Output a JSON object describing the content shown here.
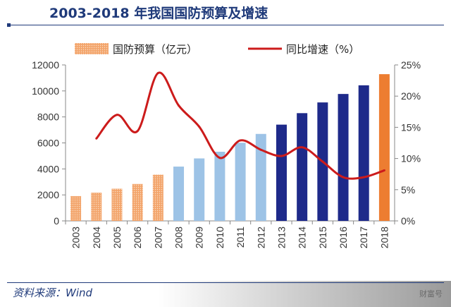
{
  "header": {
    "title": "2003-2018 年我国国防预算及增速"
  },
  "footer": {
    "source": "资料来源：Wind",
    "watermark": "财富号"
  },
  "colors": {
    "bar_early": "#f5b98a",
    "bar_mid": "#9dc3e6",
    "bar_late": "#1e2a8a",
    "bar_latest": "#ed7d31",
    "line": "#cc1b1b",
    "axis": "#888888",
    "text": "#333333"
  },
  "chart_data": {
    "type": "bar+line",
    "categories": [
      "2003",
      "2004",
      "2005",
      "2006",
      "2007",
      "2008",
      "2009",
      "2010",
      "2011",
      "2012",
      "2013",
      "2014",
      "2015",
      "2016",
      "2017",
      "2018"
    ],
    "series": [
      {
        "name": "国防预算（亿元）",
        "type": "bar",
        "axis": "left",
        "values": [
          1908,
          2172,
          2475,
          2838,
          3555,
          4178,
          4807,
          5321,
          6011,
          6692,
          7406,
          8290,
          9115,
          9766,
          10432,
          11289
        ]
      },
      {
        "name": "同比增速（%）",
        "type": "line",
        "axis": "right",
        "values": [
          null,
          13.2,
          17.0,
          14.4,
          23.7,
          18.5,
          15.1,
          10.1,
          12.9,
          11.4,
          10.4,
          11.8,
          9.5,
          7.0,
          7.0,
          8.1
        ]
      }
    ],
    "bar_color_groups": [
      "early",
      "early",
      "early",
      "early",
      "early",
      "mid",
      "mid",
      "mid",
      "mid",
      "mid",
      "late",
      "late",
      "late",
      "late",
      "late",
      "latest"
    ],
    "left_axis": {
      "ylim": [
        0,
        12000
      ],
      "ticks": [
        "0",
        "2000",
        "4000",
        "6000",
        "8000",
        "10000",
        "12000"
      ]
    },
    "right_axis": {
      "ylim": [
        0,
        25
      ],
      "ticks": [
        "0%",
        "5%",
        "10%",
        "15%",
        "20%",
        "25%"
      ]
    },
    "legend": {
      "position": "top",
      "bar_label": "国防预算（亿元）",
      "line_label": "同比增速（%）"
    }
  }
}
